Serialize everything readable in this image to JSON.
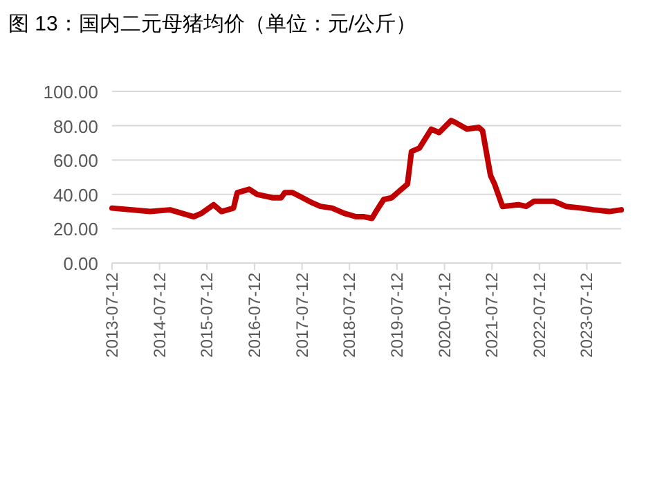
{
  "chart_data": {
    "type": "line",
    "title": "图 13：国内二元母猪均价（单位：元/公斤）",
    "x": [
      "2013-07-12",
      "2014-05",
      "2014-10",
      "2015-04",
      "2015-06",
      "2015-09",
      "2015-11",
      "2016-02",
      "2016-03",
      "2016-06",
      "2016-08",
      "2016-12",
      "2017-02",
      "2017-03",
      "2017-05",
      "2017-10",
      "2017-12",
      "2018-03",
      "2018-06",
      "2018-09",
      "2018-11",
      "2019-01",
      "2019-02",
      "2019-04",
      "2019-06",
      "2019-08",
      "2019-10",
      "2019-11",
      "2020-01",
      "2020-04",
      "2020-06",
      "2020-09",
      "2020-10",
      "2021-01",
      "2021-04",
      "2021-05",
      "2021-07",
      "2021-08",
      "2021-10",
      "2022-02",
      "2022-04",
      "2022-06",
      "2022-09",
      "2022-11",
      "2023-02",
      "2023-06",
      "2023-09",
      "2024-01",
      "2024-04"
    ],
    "series": [
      {
        "color": "#c00000",
        "values": [
          32,
          30,
          31,
          27,
          29,
          34,
          30,
          32,
          41,
          43,
          40,
          38,
          38,
          41,
          41,
          35,
          33,
          32,
          29,
          27,
          27,
          26,
          30,
          37,
          38,
          42,
          46,
          65,
          67,
          78,
          76,
          83,
          82,
          78,
          79,
          77,
          51,
          46,
          33,
          34,
          33,
          36,
          36,
          36,
          33,
          32,
          31,
          30,
          31
        ]
      }
    ],
    "xlim": [
      "2013-07-12",
      "2024-04"
    ],
    "xticks": [
      {
        "value": "2013-07-12",
        "label": "2013-07-12"
      },
      {
        "value": "2014-07-12",
        "label": "2014-07-12"
      },
      {
        "value": "2015-07-12",
        "label": "2015-07-12"
      },
      {
        "value": "2016-07-12",
        "label": "2016-07-12"
      },
      {
        "value": "2017-07-12",
        "label": "2017-07-12"
      },
      {
        "value": "2018-07-12",
        "label": "2018-07-12"
      },
      {
        "value": "2019-07-12",
        "label": "2019-07-12"
      },
      {
        "value": "2020-07-12",
        "label": "2020-07-12"
      },
      {
        "value": "2021-07-12",
        "label": "2021-07-12"
      },
      {
        "value": "2022-07-12",
        "label": "2022-07-12"
      },
      {
        "value": "2023-07-12",
        "label": "2023-07-12"
      }
    ],
    "ylim": [
      0,
      100
    ],
    "yticks": [
      {
        "value": 0,
        "label": "0.00"
      },
      {
        "value": 20,
        "label": "20.00"
      },
      {
        "value": 40,
        "label": "40.00"
      },
      {
        "value": 60,
        "label": "60.00"
      },
      {
        "value": 80,
        "label": "80.00"
      },
      {
        "value": 100,
        "label": "100.00"
      }
    ],
    "grid": "y",
    "marker": "none",
    "line_style": "solid"
  }
}
